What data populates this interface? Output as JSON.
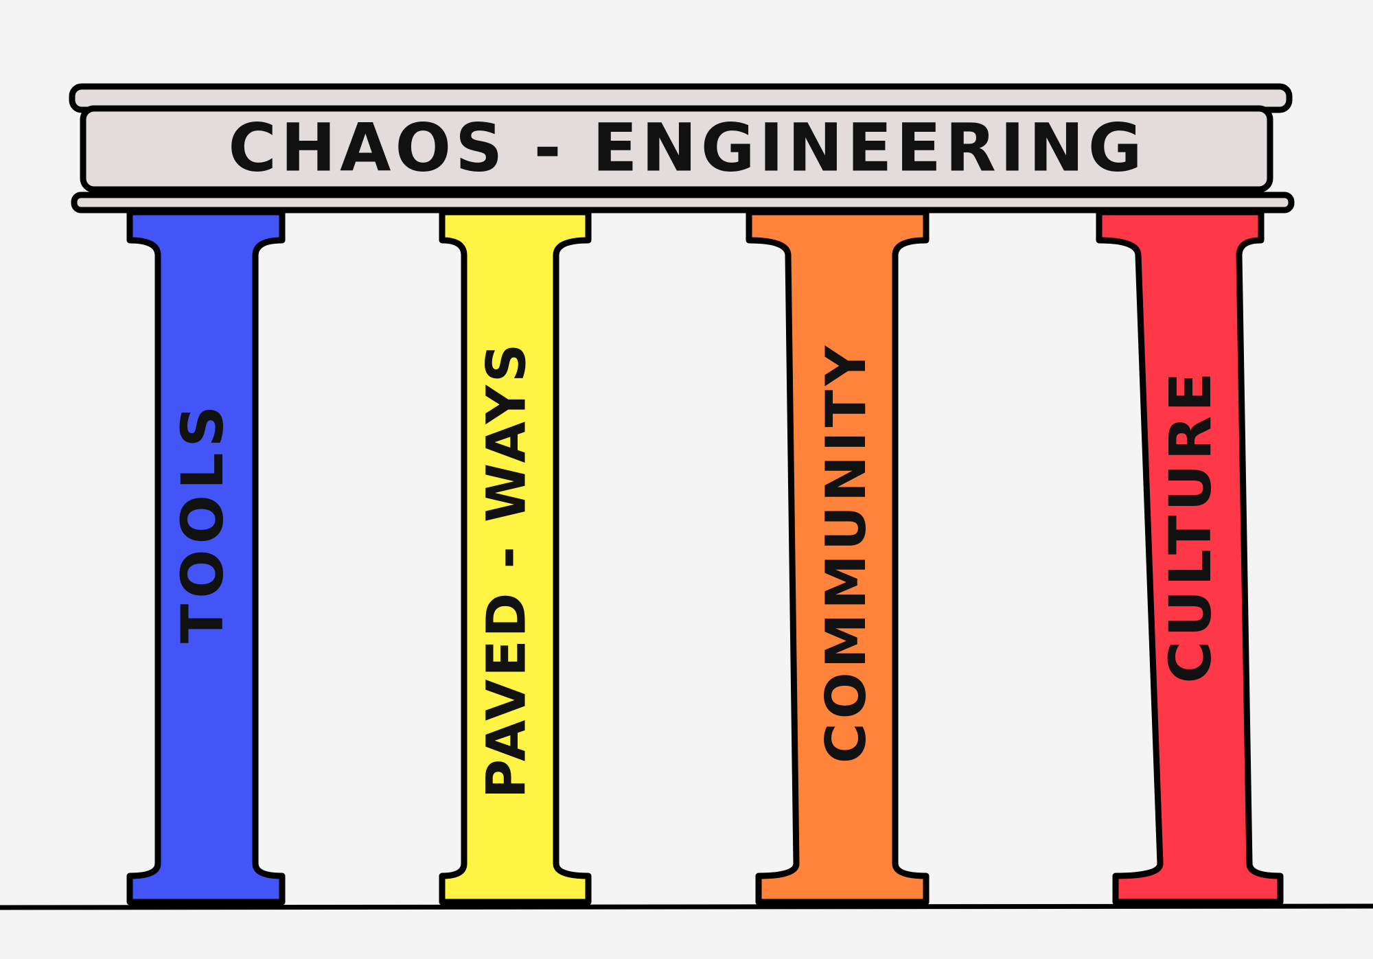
{
  "title": "CHAOS - ENGINEERING",
  "pillars": [
    {
      "label": "TOOLS"
    },
    {
      "label": "PAVED - WAYS"
    },
    {
      "label": "COMMUNITY"
    },
    {
      "label": "CULTURE"
    }
  ]
}
